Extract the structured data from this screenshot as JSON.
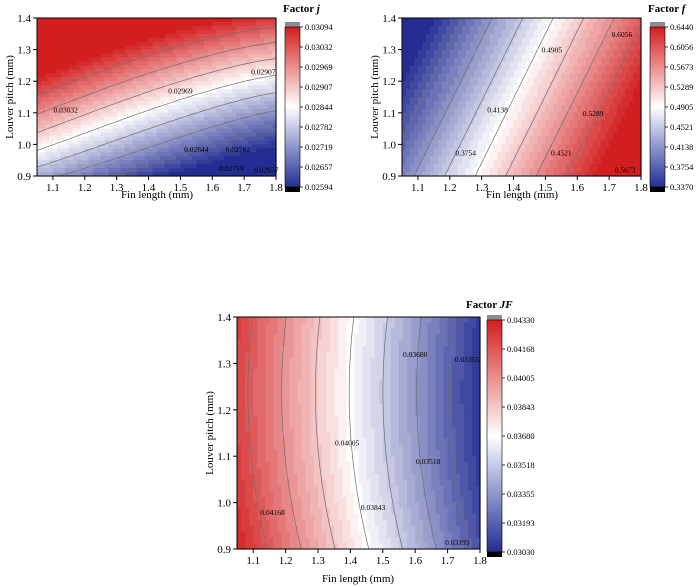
{
  "chart_data": [
    {
      "type": "heatmap",
      "title": "Factor",
      "title_symbol": "j",
      "xlabel": "Fin length (mm)",
      "ylabel": "Louver pitch (mm)",
      "xlim": [
        1.05,
        1.8
      ],
      "ylim": [
        0.9,
        1.4
      ],
      "x_ticks": [
        "1.1",
        "1.2",
        "1.3",
        "1.4",
        "1.5",
        "1.6",
        "1.7",
        "1.8"
      ],
      "y_ticks": [
        "0.9",
        "1.0",
        "1.1",
        "1.2",
        "1.3",
        "1.4"
      ],
      "colorbar_ticks": [
        "0.03094",
        "0.03032",
        "0.02969",
        "0.02907",
        "0.02844",
        "0.02782",
        "0.02719",
        "0.02657",
        "0.02594"
      ],
      "range": [
        0.02594,
        0.03094
      ],
      "contour_labels": [
        {
          "text": "0.03032",
          "x": 1.14,
          "y": 1.11
        },
        {
          "text": "0.02969",
          "x": 1.5,
          "y": 1.17
        },
        {
          "text": "0.02907",
          "x": 1.76,
          "y": 1.23
        },
        {
          "text": "0.02844",
          "x": 1.55,
          "y": 0.985
        },
        {
          "text": "0.02782",
          "x": 1.68,
          "y": 0.985
        },
        {
          "text": "0.02719",
          "x": 1.66,
          "y": 0.925
        },
        {
          "text": "0.02657",
          "x": 1.77,
          "y": 0.92
        }
      ]
    },
    {
      "type": "heatmap",
      "title": "Factor",
      "title_symbol": "f",
      "xlabel": "Fin length (mm)",
      "ylabel": "Louver pitch (mm)",
      "xlim": [
        1.05,
        1.8
      ],
      "ylim": [
        0.9,
        1.4
      ],
      "x_ticks": [
        "1.1",
        "1.2",
        "1.3",
        "1.4",
        "1.5",
        "1.6",
        "1.7",
        "1.8"
      ],
      "y_ticks": [
        "0.9",
        "1.0",
        "1.1",
        "1.2",
        "1.3",
        "1.4"
      ],
      "colorbar_ticks": [
        "0.6440",
        "0.6056",
        "0.5673",
        "0.5289",
        "0.4905",
        "0.4521",
        "0.4138",
        "0.3754",
        "0.3370"
      ],
      "range": [
        0.337,
        0.644
      ],
      "contour_labels": [
        {
          "text": "0.6056",
          "x": 1.74,
          "y": 1.35
        },
        {
          "text": "0.4905",
          "x": 1.52,
          "y": 1.3
        },
        {
          "text": "0.5289",
          "x": 1.65,
          "y": 1.1
        },
        {
          "text": "0.4138",
          "x": 1.35,
          "y": 1.11
        },
        {
          "text": "0.3754",
          "x": 1.25,
          "y": 0.975
        },
        {
          "text": "0.4521",
          "x": 1.55,
          "y": 0.975
        },
        {
          "text": "0.5673",
          "x": 1.75,
          "y": 0.92
        }
      ]
    },
    {
      "type": "heatmap",
      "title": "Factor",
      "title_symbol": "JF",
      "xlabel": "Fin length (mm)",
      "ylabel": "Louver pitch (mm)",
      "xlim": [
        1.05,
        1.8
      ],
      "ylim": [
        0.9,
        1.4
      ],
      "x_ticks": [
        "1.1",
        "1.2",
        "1.3",
        "1.4",
        "1.5",
        "1.6",
        "1.7",
        "1.8"
      ],
      "y_ticks": [
        "0.9",
        "1.0",
        "1.1",
        "1.2",
        "1.3",
        "1.4"
      ],
      "colorbar_ticks": [
        "0.04330",
        "0.04168",
        "0.04005",
        "0.03843",
        "0.03680",
        "0.03518",
        "0.03355",
        "0.03193",
        "0.03030"
      ],
      "range": [
        0.0303,
        0.0433
      ],
      "contour_labels": [
        {
          "text": "0.03680",
          "x": 1.6,
          "y": 1.32
        },
        {
          "text": "0.03355",
          "x": 1.76,
          "y": 1.31
        },
        {
          "text": "0.04005",
          "x": 1.39,
          "y": 1.13
        },
        {
          "text": "0.03518",
          "x": 1.64,
          "y": 1.09
        },
        {
          "text": "0.04168",
          "x": 1.16,
          "y": 0.98
        },
        {
          "text": "0.03843",
          "x": 1.47,
          "y": 0.99
        },
        {
          "text": "0.03193",
          "x": 1.73,
          "y": 0.915
        }
      ]
    }
  ],
  "colors": {
    "low": "#2b37a0",
    "mid": "#ffffff",
    "high": "#d21e1e",
    "below_range": "#000000",
    "above_range": "#8c8c8c",
    "contour_line": "#6e6e6e"
  }
}
